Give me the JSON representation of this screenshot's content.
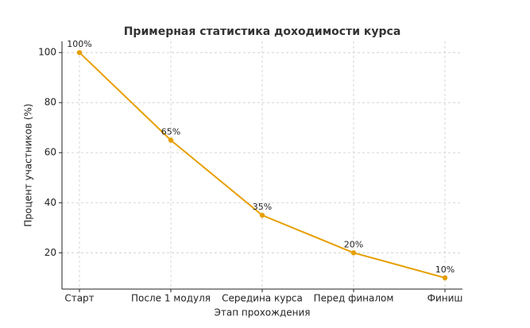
{
  "chart_data": {
    "type": "line",
    "title": "Примерная статистика доходимости курса",
    "x_label": "Этап прохождения",
    "y_label": "Процент участников (%)",
    "categories": [
      "Старт",
      "После 1 модуля",
      "Середина курса",
      "Перед финалом",
      "Финиш"
    ],
    "values": [
      100,
      65,
      35,
      20,
      10
    ],
    "value_labels": [
      "100%",
      "65%",
      "35%",
      "20%",
      "10%"
    ],
    "color": "#e69f00",
    "ylim": [
      5.5,
      104.5
    ],
    "yticks": [
      20,
      40,
      60,
      80,
      100
    ],
    "grid": true
  }
}
